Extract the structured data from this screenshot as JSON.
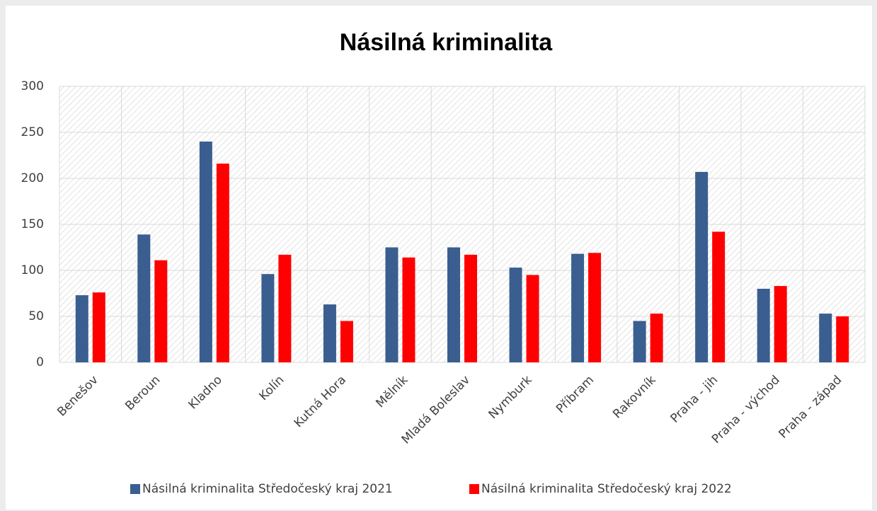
{
  "chart_data": {
    "type": "bar",
    "title": "Násilná kriminalita",
    "categories": [
      "Benešov",
      "Beroun",
      "Kladno",
      "Kolín",
      "Kutná Hora",
      "Mělník",
      "Mladá Boleslav",
      "Nymburk",
      "Příbram",
      "Rakovník",
      "Praha - jih",
      "Praha - východ",
      "Praha - západ"
    ],
    "series": [
      {
        "name": "Násilná kriminalita Středočeský kraj 2021",
        "color": "#3a5e8f",
        "values": [
          73,
          139,
          240,
          96,
          63,
          125,
          125,
          103,
          118,
          45,
          207,
          80,
          53
        ]
      },
      {
        "name": "Násilná kriminalita Středočeský kraj 2022",
        "color": "#ff0000",
        "values": [
          76,
          111,
          216,
          117,
          45,
          114,
          117,
          95,
          119,
          53,
          142,
          83,
          50
        ]
      }
    ],
    "ylim": [
      0,
      300
    ],
    "yticks": [
      0,
      50,
      100,
      150,
      200,
      250,
      300
    ],
    "grid": true,
    "legend": "bottom"
  }
}
